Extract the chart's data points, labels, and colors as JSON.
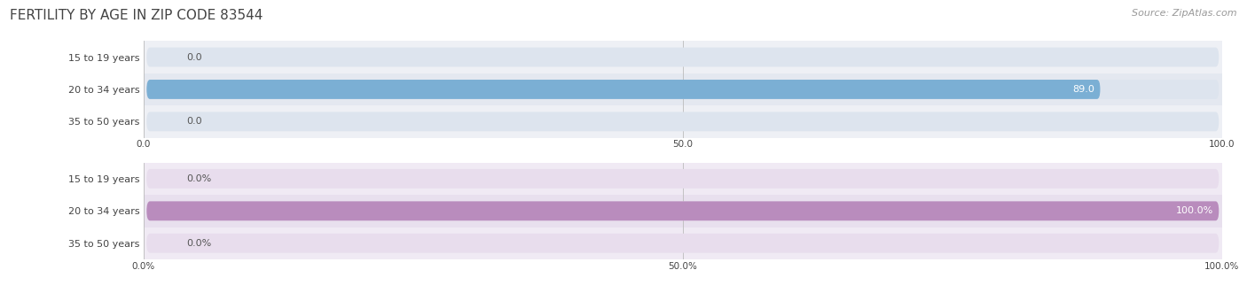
{
  "title": "FERTILITY BY AGE IN ZIP CODE 83544",
  "source": "Source: ZipAtlas.com",
  "top_chart": {
    "categories": [
      "15 to 19 years",
      "20 to 34 years",
      "35 to 50 years"
    ],
    "values": [
      0.0,
      89.0,
      0.0
    ],
    "xlim": [
      0,
      100
    ],
    "xticks": [
      0.0,
      50.0,
      100.0
    ],
    "bar_color": "#7bafd4",
    "bar_bg_color": "#dde4ee",
    "label_color_inside": "#ffffff",
    "label_color_outside": "#555555",
    "value_threshold": 10,
    "row_bg_colors": [
      "#eef0f5",
      "#e4e8f0",
      "#eef0f5"
    ]
  },
  "bottom_chart": {
    "categories": [
      "15 to 19 years",
      "20 to 34 years",
      "35 to 50 years"
    ],
    "values": [
      0.0,
      100.0,
      0.0
    ],
    "xlim": [
      0,
      100
    ],
    "xticks": [
      0.0,
      50.0,
      100.0
    ],
    "bar_color": "#b98cbd",
    "bar_bg_color": "#e8dded",
    "label_color_inside": "#ffffff",
    "label_color_outside": "#555555",
    "value_threshold": 10,
    "row_bg_colors": [
      "#f0eaf4",
      "#e8e0ee",
      "#f0eaf4"
    ]
  },
  "title_color": "#444444",
  "source_color": "#999999",
  "title_fontsize": 11,
  "source_fontsize": 8,
  "label_fontsize": 8,
  "value_fontsize": 8,
  "tick_fontsize": 7.5,
  "background_color": "#ffffff",
  "bar_height": 0.6,
  "grid_color": "#bbbbbb"
}
